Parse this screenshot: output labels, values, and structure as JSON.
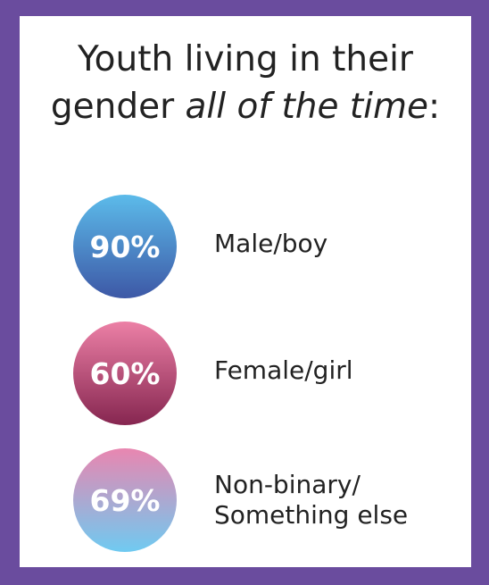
{
  "title": {
    "lead": "Youth living in their gender",
    "emphasis": "all of the time",
    "end": ":"
  },
  "items": [
    {
      "value": "90%",
      "label": "Male/boy"
    },
    {
      "value": "60%",
      "label": "Female/girl"
    },
    {
      "value": "69%",
      "label": "Non-binary/ Something else"
    }
  ]
}
